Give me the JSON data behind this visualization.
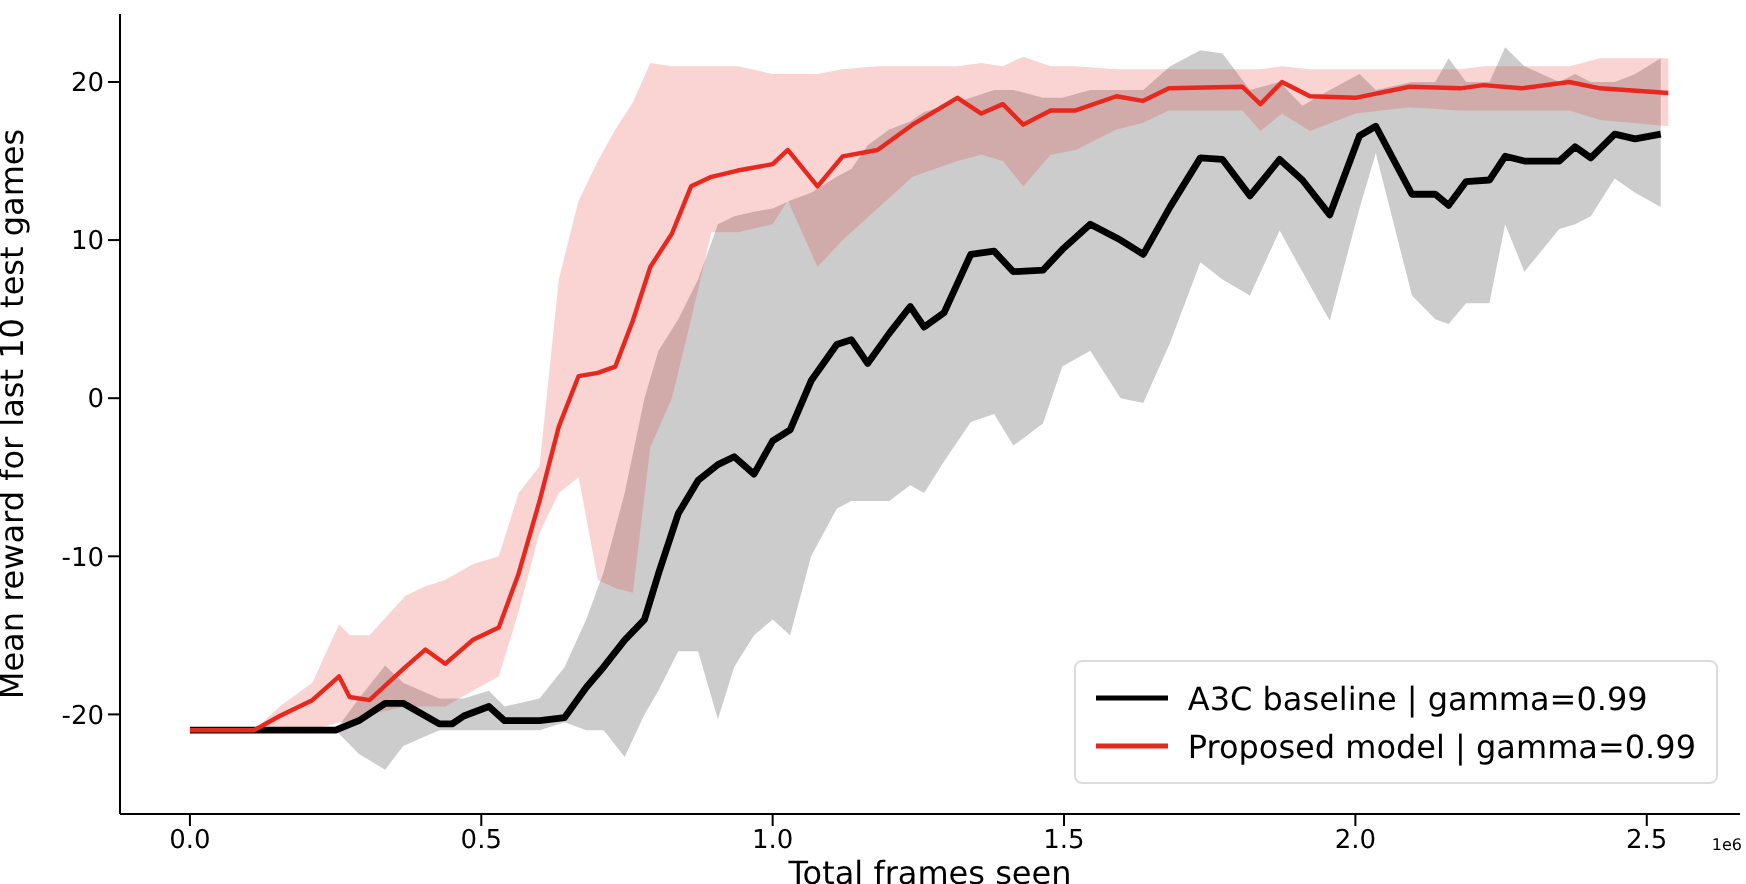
{
  "chart_data": {
    "type": "line",
    "xlabel": "Total frames seen",
    "ylabel": "Mean reward for last 10 test games",
    "annotations": [
      "1e6"
    ],
    "xlim": [
      -0.12,
      2.66
    ],
    "xticks": [
      {
        "value": 0,
        "label": "0.0"
      },
      {
        "value": 0.5,
        "label": "0.5"
      },
      {
        "value": 1,
        "label": "1.0"
      },
      {
        "value": 1.5,
        "label": "1.5"
      },
      {
        "value": 2,
        "label": "2.0"
      },
      {
        "value": 2.5,
        "label": "2.5"
      }
    ],
    "ylim": [
      -26.3,
      24.3
    ],
    "yticks": [
      -20,
      -10,
      0,
      10,
      20
    ],
    "legend": "bottom right",
    "series": [
      {
        "name": "A3C baseline | gamma=0.99",
        "color": "#000000",
        "x": [
          0,
          0.25,
          0.29,
          0.335,
          0.366,
          0.428,
          0.45,
          0.47,
          0.513,
          0.54,
          0.6,
          0.643,
          0.68,
          0.71,
          0.746,
          0.78,
          0.804,
          0.838,
          0.872,
          0.906,
          0.934,
          0.968,
          1.0,
          1.03,
          1.066,
          1.11,
          1.135,
          1.163,
          1.2,
          1.236,
          1.26,
          1.294,
          1.34,
          1.38,
          1.413,
          1.464,
          1.497,
          1.545,
          1.597,
          1.636,
          1.682,
          1.734,
          1.772,
          1.819,
          1.87,
          1.909,
          1.956,
          2.007,
          2.035,
          2.097,
          2.137,
          2.16,
          2.19,
          2.23,
          2.257,
          2.29,
          2.35,
          2.377,
          2.404,
          2.445,
          2.48,
          2.524
        ],
        "values": [
          -21,
          -21,
          -20.4,
          -19.3,
          -19.3,
          -20.6,
          -20.6,
          -20.1,
          -19.5,
          -20.4,
          -20.4,
          -20.2,
          -18.3,
          -17,
          -15.3,
          -14,
          -11.1,
          -7.3,
          -5.2,
          -4.2,
          -3.7,
          -4.8,
          -2.7,
          -2,
          1.1,
          3.4,
          3.7,
          2.2,
          4.1,
          5.8,
          4.5,
          5.4,
          9.1,
          9.3,
          8,
          8.1,
          9.4,
          11,
          10,
          9.1,
          12.1,
          15.2,
          15.1,
          12.8,
          15.1,
          13.8,
          11.6,
          16.6,
          17.2,
          12.9,
          12.9,
          12.2,
          13.7,
          13.8,
          15.3,
          15,
          15,
          15.9,
          15.2,
          16.7,
          16.4,
          16.7
        ],
        "lower": [
          -21,
          -21,
          -22.5,
          -23.5,
          -22,
          -21,
          -21,
          -21,
          -21,
          -21,
          -21,
          -20.5,
          -21,
          -21,
          -22.7,
          -20,
          -18.5,
          -16,
          -16,
          -20.3,
          -17,
          -15,
          -14,
          -15,
          -10,
          -7,
          -6.5,
          -6.5,
          -6.5,
          -5.5,
          -6,
          -4,
          -1.5,
          -1,
          -3,
          -1.6,
          2,
          3,
          0,
          -0.3,
          3.5,
          8.6,
          7.5,
          6.5,
          10.6,
          8,
          4.9,
          12,
          15.5,
          6.5,
          5,
          4.7,
          6,
          6,
          11,
          8,
          10.7,
          11,
          11.5,
          13.9,
          13,
          12.1
        ],
        "upper": [
          -21,
          -21,
          -19,
          -16.9,
          -18,
          -19,
          -19,
          -19,
          -18.5,
          -19.5,
          -19,
          -17,
          -14,
          -11,
          -6,
          0,
          3,
          5,
          7.5,
          11,
          11.5,
          11.8,
          12,
          12.5,
          13,
          14,
          14.5,
          16,
          17,
          17.5,
          18.1,
          18.5,
          19,
          19.5,
          19.5,
          19,
          19,
          19.5,
          19.5,
          19.5,
          21,
          22,
          21.8,
          19.5,
          20,
          18.5,
          19.5,
          20.5,
          19.5,
          20,
          20,
          21.5,
          20,
          20,
          22.2,
          21,
          20,
          20.5,
          20,
          20,
          20.5,
          21.5
        ]
      },
      {
        "name": "Proposed model | gamma=0.99",
        "color": "#e8281e",
        "x": [
          0,
          0.11,
          0.154,
          0.21,
          0.256,
          0.274,
          0.308,
          0.37,
          0.404,
          0.438,
          0.485,
          0.53,
          0.564,
          0.6,
          0.633,
          0.667,
          0.7,
          0.73,
          0.76,
          0.79,
          0.827,
          0.86,
          0.895,
          0.94,
          1.0,
          1.026,
          1.077,
          1.12,
          1.18,
          1.24,
          1.317,
          1.358,
          1.395,
          1.43,
          1.477,
          1.52,
          1.59,
          1.635,
          1.68,
          1.806,
          1.837,
          1.874,
          1.922,
          2.0,
          2.093,
          2.18,
          2.22,
          2.285,
          2.367,
          2.42,
          2.537
        ],
        "values": [
          -21,
          -21,
          -20.1,
          -19.1,
          -17.6,
          -18.9,
          -19.1,
          -17,
          -15.9,
          -16.8,
          -15.3,
          -14.5,
          -11.1,
          -6.5,
          -1.8,
          1.4,
          1.6,
          2,
          4.9,
          8.3,
          10.4,
          13.4,
          14,
          14.4,
          14.8,
          15.7,
          13.4,
          15.3,
          15.7,
          17.3,
          19,
          18,
          18.6,
          17.3,
          18.2,
          18.2,
          19.1,
          18.8,
          19.6,
          19.7,
          18.6,
          20,
          19.1,
          19,
          19.7,
          19.6,
          19.8,
          19.6,
          20,
          19.6,
          19.3
        ],
        "lower": [
          -21,
          -21,
          -21,
          -21,
          -20.5,
          -20.5,
          -20,
          -19.5,
          -19.5,
          -19.5,
          -18.5,
          -17.6,
          -13.5,
          -8.5,
          -6,
          -5,
          -11.5,
          -12,
          -12.3,
          -3.1,
          0,
          5,
          10.5,
          10.5,
          11,
          12.5,
          8.3,
          10,
          12,
          14,
          15,
          15.4,
          15,
          13.4,
          15.4,
          15.7,
          17,
          17.4,
          18.2,
          18.2,
          16.9,
          18,
          16.9,
          18,
          18.4,
          18.2,
          18.2,
          18.2,
          18.2,
          17.6,
          17.2
        ],
        "upper": [
          -21,
          -21,
          -19.5,
          -18,
          -14.3,
          -15,
          -15,
          -12.5,
          -11.9,
          -11.5,
          -10.5,
          -10,
          -6,
          -4.3,
          7.5,
          12.5,
          15,
          17,
          18.7,
          21.2,
          21,
          21,
          21,
          21,
          20.5,
          20.5,
          20.5,
          20.8,
          21,
          21,
          21,
          21.2,
          21,
          21.6,
          21,
          21,
          20.8,
          20.8,
          20.8,
          20.8,
          20.8,
          21,
          20.8,
          20.8,
          20.8,
          20.8,
          21,
          21,
          21,
          21.5,
          21.5
        ]
      }
    ]
  }
}
